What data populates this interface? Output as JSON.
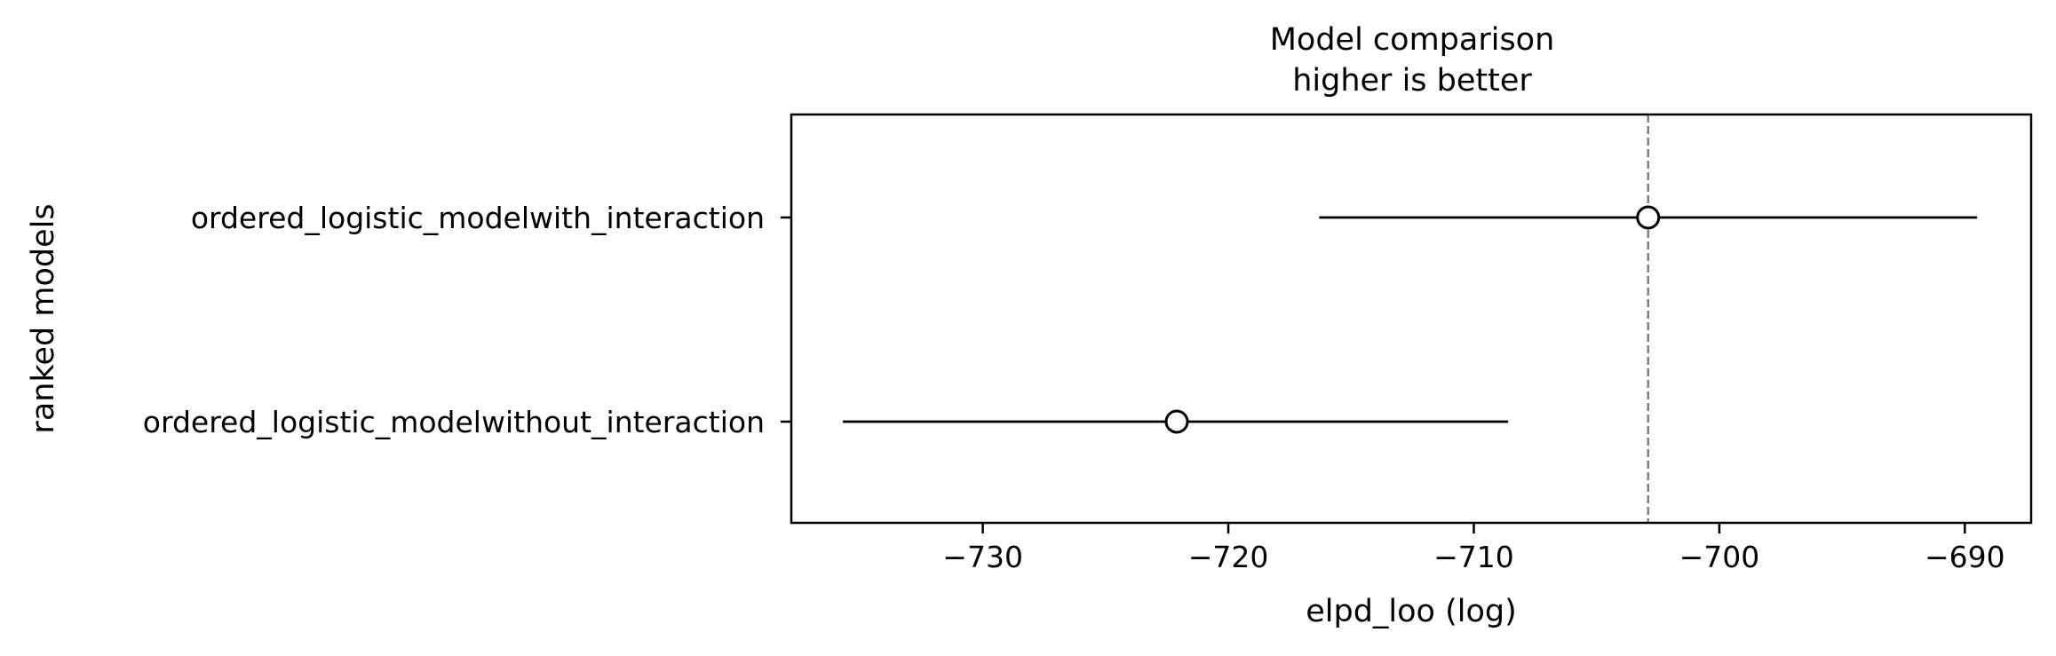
{
  "chart_data": {
    "type": "scatter",
    "title": "Model comparison",
    "subtitle": "higher is better",
    "xlabel": "elpd_loo (log)",
    "ylabel": "ranked models",
    "xlim": [
      -737.8,
      -687.3
    ],
    "xticks": [
      -730,
      -720,
      -710,
      -700,
      -690
    ],
    "xtick_labels": [
      "−730",
      "−720",
      "−710",
      "−700",
      "−690"
    ],
    "models": [
      {
        "name": "ordered_logistic_modelwith_interaction",
        "elpd": -702.9,
        "lower": -716.3,
        "upper": -689.5
      },
      {
        "name": "ordered_logistic_modelwithout_interaction",
        "elpd": -722.1,
        "lower": -735.7,
        "upper": -708.6
      }
    ],
    "reference_line": -702.9,
    "grid": false,
    "colors": {
      "marker_face": "#ffffff",
      "marker_edge": "#000000",
      "errorbar": "#000000",
      "reference_line": "#808080"
    }
  }
}
